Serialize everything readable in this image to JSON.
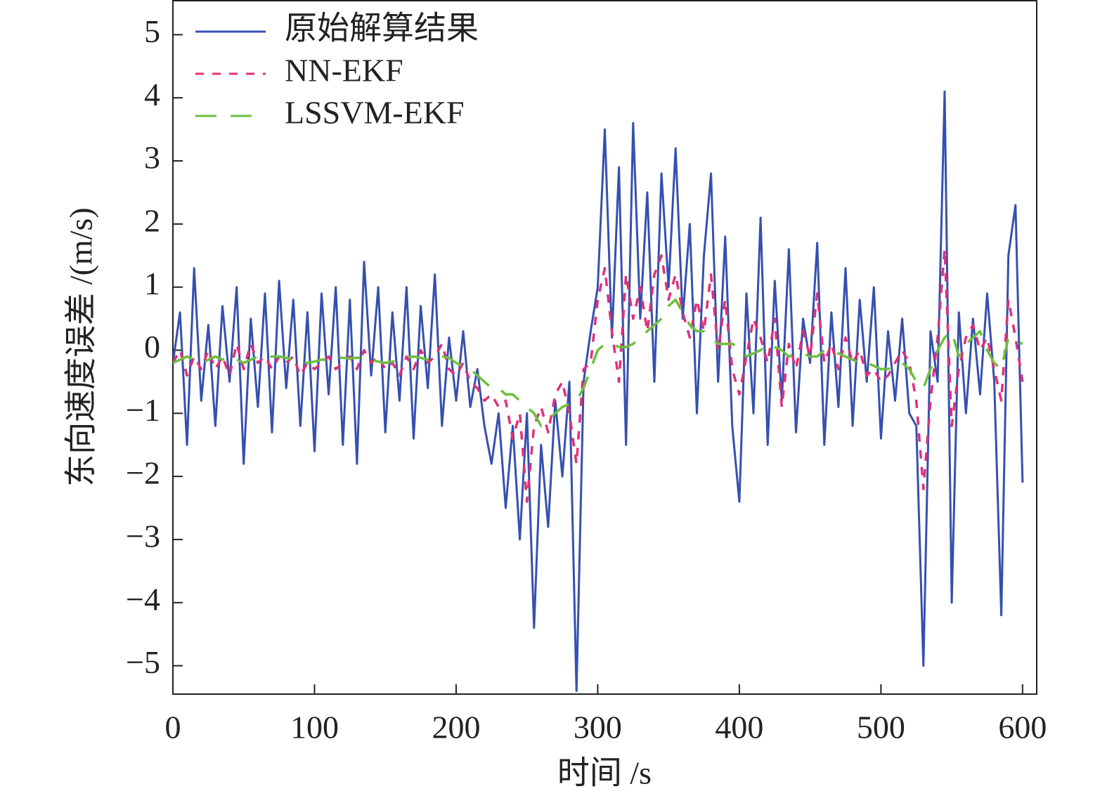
{
  "chart_data": {
    "type": "line",
    "xlabel": "时间 /s",
    "ylabel": "东向速度误差 /(m/s)",
    "x": [
      0,
      5,
      10,
      15,
      20,
      25,
      30,
      35,
      40,
      45,
      50,
      55,
      60,
      65,
      70,
      75,
      80,
      85,
      90,
      95,
      100,
      105,
      110,
      115,
      120,
      125,
      130,
      135,
      140,
      145,
      150,
      155,
      160,
      165,
      170,
      175,
      180,
      185,
      190,
      195,
      200,
      205,
      210,
      215,
      220,
      225,
      230,
      235,
      240,
      245,
      250,
      255,
      260,
      265,
      270,
      275,
      280,
      285,
      290,
      295,
      300,
      305,
      310,
      315,
      320,
      325,
      330,
      335,
      340,
      345,
      350,
      355,
      360,
      365,
      370,
      375,
      380,
      385,
      390,
      395,
      400,
      405,
      410,
      415,
      420,
      425,
      430,
      435,
      440,
      445,
      450,
      455,
      460,
      465,
      470,
      475,
      480,
      485,
      490,
      495,
      500,
      505,
      510,
      515,
      520,
      525,
      530,
      535,
      540,
      545,
      550,
      555,
      560,
      565,
      570,
      575,
      580,
      585,
      590,
      595,
      600
    ],
    "series": [
      {
        "name": "原始解算结果",
        "color": "#3550b0",
        "dash": "solid",
        "values": [
          -0.2,
          0.6,
          -1.5,
          1.3,
          -0.8,
          0.4,
          -1.2,
          0.7,
          -0.5,
          1.0,
          -1.8,
          0.5,
          -0.9,
          0.9,
          -1.3,
          1.1,
          -0.6,
          0.8,
          -1.2,
          0.6,
          -1.6,
          0.9,
          -0.7,
          1.0,
          -1.5,
          0.8,
          -1.8,
          1.4,
          -0.4,
          1.0,
          -1.3,
          0.6,
          -0.8,
          1.0,
          -1.4,
          0.7,
          -0.6,
          1.2,
          -1.2,
          0.2,
          -0.8,
          0.3,
          -0.9,
          -0.3,
          -1.2,
          -1.8,
          -1.0,
          -2.5,
          -1.2,
          -3.0,
          -1.0,
          -4.4,
          -1.5,
          -2.8,
          -0.8,
          -2.0,
          -0.5,
          -5.4,
          -0.5,
          0.3,
          1.0,
          3.5,
          0.2,
          2.9,
          -1.5,
          3.6,
          0.5,
          2.5,
          -0.5,
          2.8,
          1.0,
          3.2,
          0.5,
          2.0,
          -1.0,
          1.5,
          2.8,
          -0.5,
          1.8,
          -1.2,
          -2.4,
          0.9,
          -1.0,
          2.1,
          -1.5,
          1.1,
          -0.8,
          1.6,
          -1.3,
          0.5,
          -0.2,
          1.7,
          -1.5,
          0.6,
          -0.9,
          1.3,
          -1.2,
          0.8,
          -0.5,
          1.0,
          -1.4,
          0.3,
          -0.8,
          0.5,
          -1.0,
          -1.2,
          -5.0,
          0.3,
          -0.5,
          4.1,
          -4.0,
          0.6,
          -1.0,
          0.5,
          -0.7,
          0.9,
          -0.5,
          -4.2,
          1.5,
          2.3,
          -2.1
        ]
      },
      {
        "name": "NN-EKF",
        "color": "#e0307a",
        "dash": "dashed",
        "values": [
          -0.2,
          0.0,
          -0.4,
          -0.1,
          -0.3,
          0.0,
          -0.3,
          -0.1,
          -0.4,
          0.1,
          -0.3,
          0.1,
          -0.2,
          -0.1,
          -0.3,
          -0.1,
          -0.2,
          -0.1,
          -0.4,
          -0.2,
          -0.3,
          -0.2,
          -0.1,
          -0.3,
          -0.2,
          -0.1,
          -0.3,
          0.0,
          -0.2,
          -0.1,
          -0.3,
          -0.2,
          -0.4,
          -0.1,
          -0.3,
          0.0,
          -0.2,
          -0.1,
          0.1,
          -0.3,
          -0.4,
          -0.2,
          -0.5,
          -0.6,
          -0.8,
          -0.7,
          -0.9,
          -0.8,
          -1.4,
          -1.0,
          -2.4,
          -1.2,
          -0.9,
          -1.3,
          -0.7,
          -0.5,
          -1.0,
          -1.8,
          -0.3,
          -0.2,
          0.8,
          1.3,
          0.3,
          -0.5,
          1.2,
          0.5,
          1.0,
          0.3,
          1.2,
          1.5,
          0.8,
          1.2,
          0.6,
          0.2,
          0.8,
          0.3,
          1.2,
          0.0,
          0.8,
          -0.3,
          -0.7,
          -0.1,
          0.5,
          0.2,
          -0.2,
          0.5,
          -0.9,
          0.1,
          -0.3,
          0.3,
          -0.1,
          0.9,
          -0.2,
          0.1,
          -0.3,
          0.2,
          -0.2,
          0.0,
          -0.4,
          -0.3,
          -0.5,
          -0.4,
          -0.2,
          0.0,
          -0.2,
          -0.8,
          -2.2,
          -0.8,
          0.2,
          1.6,
          -1.2,
          -0.3,
          0.2,
          0.4,
          0.0,
          0.2,
          -0.3,
          -0.8,
          0.8,
          0.2,
          -0.5
        ]
      },
      {
        "name": "LSSVM-EKF",
        "color": "#6cbf3c",
        "dash": "longdash",
        "values": [
          -0.2,
          -0.15,
          -0.1,
          -0.15,
          -0.2,
          -0.15,
          -0.1,
          -0.15,
          -0.1,
          -0.15,
          -0.2,
          -0.15,
          -0.1,
          -0.1,
          -0.1,
          -0.1,
          -0.12,
          -0.15,
          -0.18,
          -0.2,
          -0.18,
          -0.15,
          -0.15,
          -0.12,
          -0.12,
          -0.13,
          -0.12,
          -0.12,
          -0.15,
          -0.18,
          -0.2,
          -0.18,
          -0.15,
          -0.12,
          -0.1,
          -0.12,
          -0.15,
          -0.15,
          -0.1,
          -0.12,
          -0.2,
          -0.25,
          -0.3,
          -0.4,
          -0.5,
          -0.6,
          -0.6,
          -0.7,
          -0.7,
          -0.8,
          -0.9,
          -1.0,
          -1.2,
          -1.1,
          -1.0,
          -0.9,
          -0.85,
          -0.8,
          -0.6,
          -0.3,
          0.0,
          0.1,
          0.1,
          0.05,
          0.05,
          0.1,
          0.2,
          0.3,
          0.4,
          0.5,
          0.7,
          0.8,
          0.6,
          0.4,
          0.3,
          0.3,
          0.2,
          0.1,
          0.1,
          0.1,
          0.05,
          -0.1,
          -0.05,
          0.0,
          0.1,
          0.05,
          0.0,
          -0.1,
          -0.05,
          -0.05,
          -0.1,
          -0.1,
          0.0,
          0.0,
          -0.05,
          -0.1,
          -0.15,
          -0.2,
          -0.2,
          -0.25,
          -0.3,
          -0.3,
          -0.25,
          -0.2,
          -0.3,
          -0.5,
          -0.6,
          -0.3,
          0.0,
          0.2,
          0.3,
          -0.1,
          0.1,
          0.2,
          0.3,
          0.0,
          -0.2,
          -0.3,
          0.2,
          0.15,
          0.1
        ]
      }
    ],
    "xlim": [
      0,
      610
    ],
    "ylim": [
      -5.45,
      5.55
    ],
    "xticks": [
      0,
      100,
      200,
      300,
      400,
      500,
      600
    ],
    "yticks": [
      {
        "value": -5,
        "label": "−5"
      },
      {
        "value": -4,
        "label": "−4"
      },
      {
        "value": -3,
        "label": "−3"
      },
      {
        "value": -2,
        "label": "−2"
      },
      {
        "value": -1,
        "label": "−1"
      },
      0,
      1,
      2,
      3,
      4,
      5
    ],
    "legend": "upper left",
    "grid": false
  }
}
